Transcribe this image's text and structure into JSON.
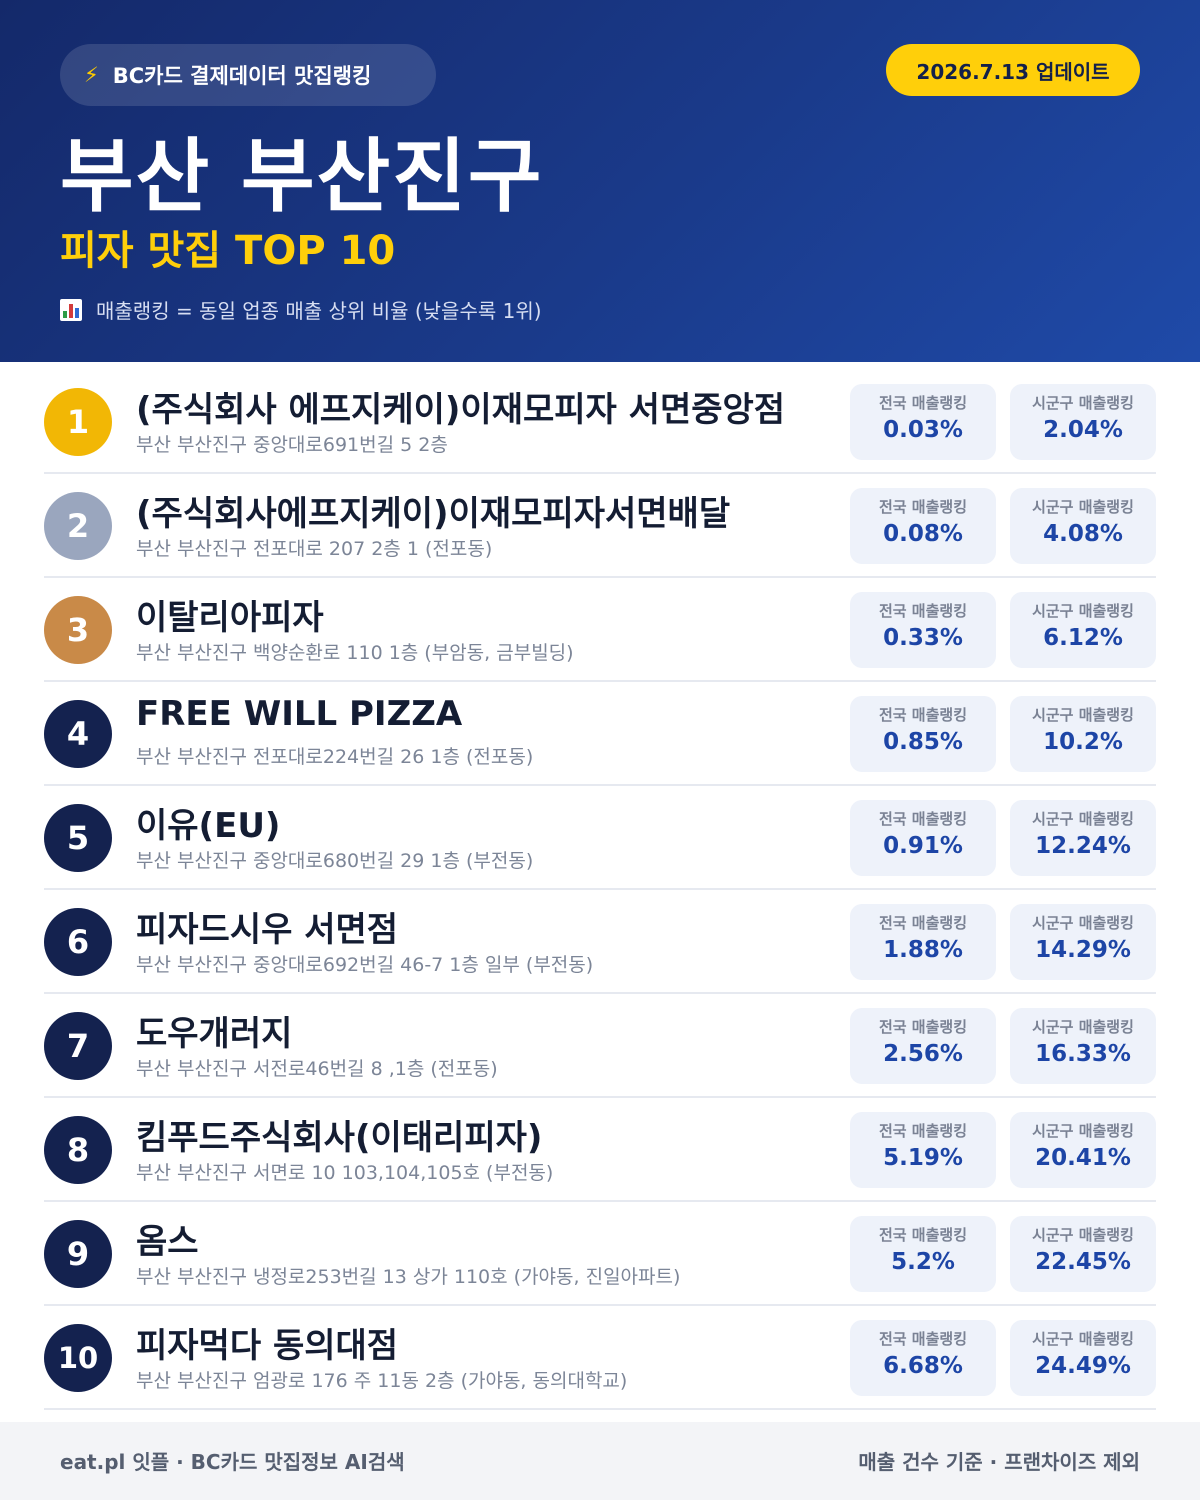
{
  "header": {
    "source_label": "BC카드 결제데이터 맛집랭킹",
    "source_icon": "lightning-icon",
    "update_label": "2026.7.13 업데이트",
    "title": "부산 부산진구",
    "subtitle": "피자 맛집 TOP 10",
    "note": "매출랭킹 = 동일 업종 매출 상위 비율 (낮을수록 1위)",
    "note_icon": "bar-chart-icon"
  },
  "labels": {
    "national": "전국 매출랭킹",
    "local": "시군구 매출랭킹"
  },
  "colors": {
    "gold": "#f2b705",
    "silver": "#9aa6be",
    "bronze": "#c98a48",
    "navy": "#14224f",
    "accent": "#ffcf0a",
    "value": "#1d45a6"
  },
  "items": [
    {
      "rank": "1",
      "name": "(주식회사 에프지케이)이재모피자 서면중앙점",
      "address": "부산 부산진구 중앙대로691번길 5 2층",
      "national": "0.03%",
      "local": "2.04%"
    },
    {
      "rank": "2",
      "name": "(주식회사에프지케이)이재모피자서면배달",
      "address": "부산 부산진구 전포대로 207 2층 1 (전포동)",
      "national": "0.08%",
      "local": "4.08%"
    },
    {
      "rank": "3",
      "name": "이탈리아피자",
      "address": "부산 부산진구 백양순환로 110 1층 (부암동, 금부빌딩)",
      "national": "0.33%",
      "local": "6.12%"
    },
    {
      "rank": "4",
      "name": "FREE WILL PIZZA",
      "address": "부산 부산진구 전포대로224번길 26 1층 (전포동)",
      "national": "0.85%",
      "local": "10.2%"
    },
    {
      "rank": "5",
      "name": "이유(EU)",
      "address": "부산 부산진구 중앙대로680번길 29 1층 (부전동)",
      "national": "0.91%",
      "local": "12.24%"
    },
    {
      "rank": "6",
      "name": "피자드시우 서면점",
      "address": "부산 부산진구 중앙대로692번길 46-7 1층 일부 (부전동)",
      "national": "1.88%",
      "local": "14.29%"
    },
    {
      "rank": "7",
      "name": "도우개러지",
      "address": "부산 부산진구 서전로46번길 8 ,1층 (전포동)",
      "national": "2.56%",
      "local": "16.33%"
    },
    {
      "rank": "8",
      "name": "킴푸드주식회사(이태리피자)",
      "address": "부산 부산진구 서면로 10 103,104,105호 (부전동)",
      "national": "5.19%",
      "local": "20.41%"
    },
    {
      "rank": "9",
      "name": "옴스",
      "address": "부산 부산진구 냉정로253번길 13 상가 110호 (가야동, 진일아파트)",
      "national": "5.2%",
      "local": "22.45%"
    },
    {
      "rank": "10",
      "name": "피자먹다 동의대점",
      "address": "부산 부산진구 엄광로 176 주 11동 2층 (가야동, 동의대학교)",
      "national": "6.68%",
      "local": "24.49%"
    }
  ],
  "footer": {
    "left": "eat.pl 잇플 · BC카드 맛집정보 AI검색",
    "right": "매출 건수 기준 · 프랜차이즈 제외"
  }
}
